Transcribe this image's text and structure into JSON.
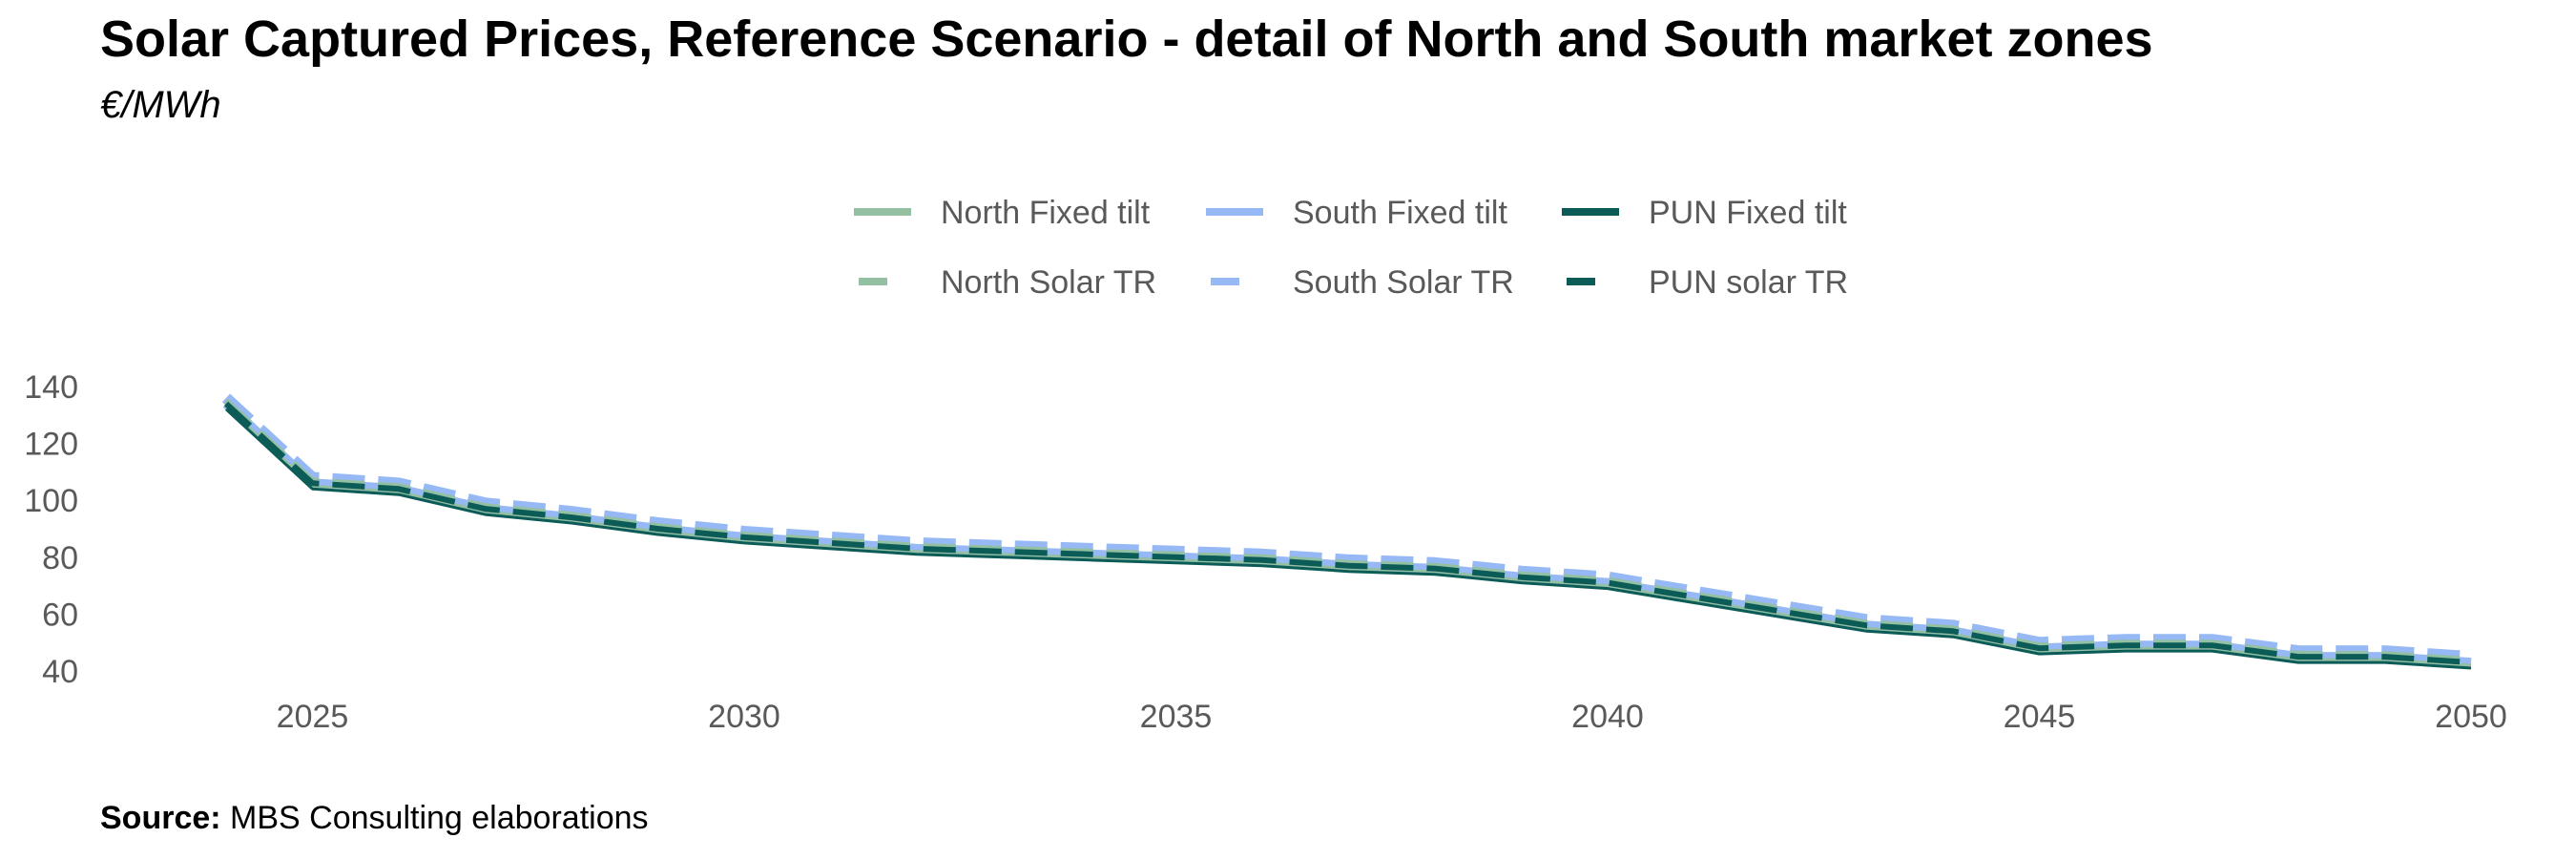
{
  "title": "Solar Captured Prices, Reference Scenario - detail of North and South market zones",
  "subtitle": "€/MWh",
  "source": {
    "label": "Source:",
    "text": "MBS Consulting elaborations"
  },
  "chart_data": {
    "type": "line",
    "x": [
      2024,
      2025,
      2026,
      2027,
      2028,
      2029,
      2030,
      2031,
      2032,
      2033,
      2034,
      2035,
      2036,
      2037,
      2038,
      2039,
      2040,
      2041,
      2042,
      2043,
      2044,
      2045,
      2046,
      2047,
      2048,
      2049,
      2050
    ],
    "xticks": [
      2025,
      2030,
      2035,
      2040,
      2045,
      2050
    ],
    "yticks": [
      40,
      60,
      80,
      100,
      120,
      140
    ],
    "xlim": [
      2024,
      2050
    ],
    "ylim": [
      40,
      140
    ],
    "grid": false,
    "legend_position": "top-center",
    "series": [
      {
        "name": "North Fixed tilt",
        "color": "#93BFA3",
        "dash": "solid",
        "values": [
          133,
          105,
          103,
          96,
          93,
          89,
          86,
          84,
          82,
          81,
          80,
          79,
          78,
          76,
          75,
          72,
          70,
          65,
          60,
          55,
          53,
          47,
          48,
          48,
          44,
          44,
          42
        ]
      },
      {
        "name": "North Solar TR",
        "color": "#93BFA3",
        "dash": "dashed",
        "values": [
          135,
          107,
          105,
          98,
          95,
          91,
          88,
          86,
          84,
          83,
          82,
          81,
          80,
          78,
          77,
          74,
          72,
          67,
          62,
          57,
          55,
          49,
          50,
          50,
          46,
          46,
          44
        ]
      },
      {
        "name": "South Fixed tilt",
        "color": "#96B9F5",
        "dash": "solid",
        "values": [
          134,
          106,
          104,
          97,
          94,
          90,
          87,
          85,
          83,
          82,
          81,
          80,
          79,
          77,
          76,
          73,
          71,
          66,
          61,
          56,
          54,
          48,
          49,
          49,
          45,
          45,
          43
        ]
      },
      {
        "name": "South Solar TR",
        "color": "#96B9F5",
        "dash": "dashed",
        "values": [
          136,
          108,
          106,
          99,
          96,
          92,
          89,
          87,
          85,
          84,
          83,
          82,
          81,
          79,
          78,
          75,
          73,
          68,
          63,
          58,
          56,
          50,
          51,
          51,
          47,
          47,
          45
        ]
      },
      {
        "name": "PUN Fixed tilt",
        "color": "#0B5B57",
        "dash": "solid",
        "values": [
          132,
          104,
          102,
          95,
          92,
          88,
          85,
          83,
          81,
          80,
          79,
          78,
          77,
          75,
          74,
          71,
          69,
          64,
          59,
          54,
          52,
          46,
          47,
          47,
          43,
          43,
          41
        ]
      },
      {
        "name": "PUN solar TR",
        "color": "#0B5B57",
        "dash": "dashed",
        "values": [
          134,
          106,
          104,
          97,
          94,
          90,
          87,
          85,
          83,
          82,
          81,
          80,
          79,
          77,
          76,
          73,
          71,
          66,
          61,
          56,
          54,
          48,
          49,
          49,
          45,
          45,
          43
        ]
      }
    ]
  }
}
